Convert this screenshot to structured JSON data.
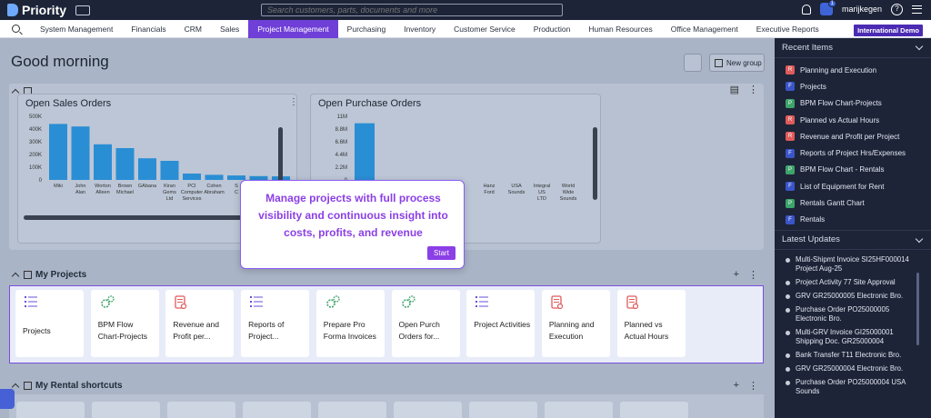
{
  "app": {
    "name": "Priority",
    "search_placeholder": "Search customers, parts, documents and more",
    "user_badge_count": "1",
    "username": "marijkegen"
  },
  "nav": {
    "items": [
      "System Management",
      "Financials",
      "CRM",
      "Sales",
      "Project Management",
      "Purchasing",
      "Inventory",
      "Customer Service",
      "Production",
      "Human Resources",
      "Office Management",
      "Executive Reports"
    ],
    "active": "Project Management",
    "demo_badge": "International Demo"
  },
  "header": {
    "greeting": "Good morning",
    "new_group_label": "New group"
  },
  "charts": {
    "sales": {
      "title": "Open Sales Orders"
    },
    "purchase": {
      "title": "Open Purchase Orders"
    }
  },
  "chart_data": [
    {
      "type": "bar",
      "title": "Open Sales Orders",
      "ylim": [
        0,
        500000
      ],
      "yticks": [
        "500K",
        "400K",
        "300K",
        "200K",
        "100K",
        "0"
      ],
      "categories": [
        "Miki",
        "John Alan",
        "Worton Alleen",
        "Brown Michael",
        "GAbana",
        "Kiran Gems Ltd",
        "PCI Computer Services",
        "Cohen Abraham",
        "S C",
        "",
        ""
      ],
      "values": [
        440000,
        420000,
        280000,
        250000,
        170000,
        150000,
        50000,
        40000,
        35000,
        30000,
        28000
      ]
    },
    {
      "type": "bar",
      "title": "Open Purchase Orders",
      "ylim": [
        0,
        11000000
      ],
      "yticks": [
        "11M",
        "8.8M",
        "6.6M",
        "4.4M",
        "2.2M",
        "0"
      ],
      "categories": [
        "",
        "Hanz Ford",
        "USA Sounds",
        "Integral US LTD",
        "World Wide Sounds"
      ],
      "values": [
        9800000,
        0,
        0,
        0,
        0
      ]
    }
  ],
  "sections": {
    "projects_title": "My Projects",
    "rental_title": "My Rental shortcuts"
  },
  "projects": [
    {
      "label": "Projects",
      "icon": "list-icon"
    },
    {
      "label": "BPM Flow Chart-Projects",
      "icon": "gears-icon"
    },
    {
      "label": "Revenue and Profit per...",
      "icon": "report-icon"
    },
    {
      "label": "Reports of Project...",
      "icon": "list-icon"
    },
    {
      "label": "Prepare Pro Forma Invoices",
      "icon": "gears-icon"
    },
    {
      "label": "Open Purch Orders for...",
      "icon": "gears-icon"
    },
    {
      "label": "Project Activities",
      "icon": "list-icon"
    },
    {
      "label": "Planning and Execution",
      "icon": "report-icon"
    },
    {
      "label": "Planned vs Actual Hours",
      "icon": "report-icon"
    }
  ],
  "tooltip": {
    "message": "Manage projects with full process visibility and continuous insight into costs, profits, and revenue",
    "start_label": "Start"
  },
  "recent": {
    "title": "Recent Items",
    "items": [
      {
        "badge": "R",
        "label": "Planning and Execution"
      },
      {
        "badge": "F",
        "label": "Projects"
      },
      {
        "badge": "P",
        "label": "BPM Flow Chart-Projects"
      },
      {
        "badge": "R",
        "label": "Planned vs Actual Hours"
      },
      {
        "badge": "R",
        "label": "Revenue and Profit per Project"
      },
      {
        "badge": "F",
        "label": "Reports of Project Hrs/Expenses"
      },
      {
        "badge": "P",
        "label": "BPM Flow Chart - Rentals"
      },
      {
        "badge": "F",
        "label": "List of Equipment for Rent"
      },
      {
        "badge": "P",
        "label": "Rentals Gantt Chart"
      },
      {
        "badge": "F",
        "label": "Rentals"
      }
    ]
  },
  "updates": {
    "title": "Latest Updates",
    "items": [
      "Multi-Shipmt Invoice SI25HF000014 Project Aug-25",
      "Project Activity 77 Site Approval",
      "GRV GR25000005 Electronic Bro.",
      "Purchase Order PO25000005 Electronic Bro.",
      "Multi-GRV Invoice GI25000001 Shipping Doc. GR25000004",
      "Bank Transfer T11 Electronic Bro.",
      "GRV GR25000004 Electronic Bro.",
      "Purchase Order PO25000004 USA Sounds"
    ]
  },
  "colors": {
    "accent": "#6f3fd8",
    "bar": "#2a8ed4",
    "topbar": "#1d2438"
  }
}
